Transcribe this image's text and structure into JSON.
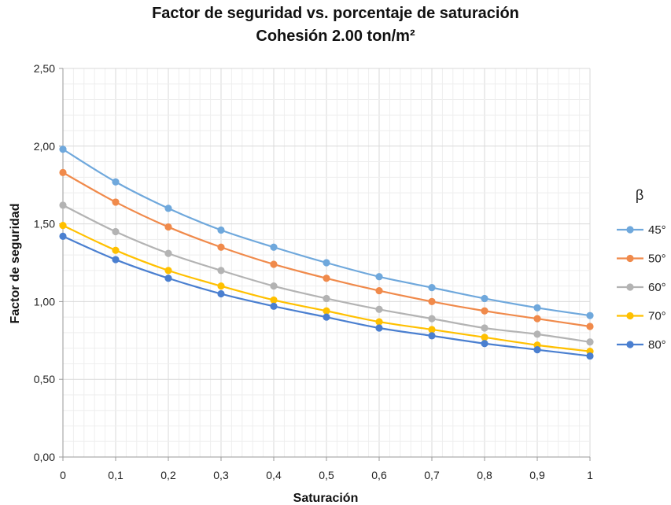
{
  "chart_data": {
    "type": "line",
    "title": "Factor de seguridad vs. porcentaje de saturación",
    "subtitle": "Cohesión 2.00 ton/m²",
    "xlabel": "Saturación",
    "ylabel": "Factor de seguridad",
    "x": [
      0,
      0.1,
      0.2,
      0.3,
      0.4,
      0.5,
      0.6,
      0.7,
      0.8,
      0.9,
      1
    ],
    "x_tick_labels": [
      "0",
      "0,1",
      "0,2",
      "0,3",
      "0,4",
      "0,5",
      "0,6",
      "0,7",
      "0,8",
      "0,9",
      "1"
    ],
    "xlim": [
      0,
      1
    ],
    "ylim": [
      0,
      2.5
    ],
    "y_ticks": [
      0,
      0.5,
      1.0,
      1.5,
      2.0,
      2.5
    ],
    "y_tick_labels": [
      "0,00",
      "0,50",
      "1,00",
      "1,50",
      "2,00",
      "2,50"
    ],
    "grid": true,
    "legend_title": "β",
    "legend_position": "right",
    "series": [
      {
        "name": "45°",
        "color": "#6fa8dc",
        "values": [
          1.98,
          1.77,
          1.6,
          1.46,
          1.35,
          1.25,
          1.16,
          1.09,
          1.02,
          0.96,
          0.91
        ]
      },
      {
        "name": "50°",
        "color": "#f08a4b",
        "values": [
          1.83,
          1.64,
          1.48,
          1.35,
          1.24,
          1.15,
          1.07,
          1.0,
          0.94,
          0.89,
          0.84
        ]
      },
      {
        "name": "60°",
        "color": "#b3b3b3",
        "values": [
          1.62,
          1.45,
          1.31,
          1.2,
          1.1,
          1.02,
          0.95,
          0.89,
          0.83,
          0.79,
          0.74
        ]
      },
      {
        "name": "70°",
        "color": "#ffc000",
        "values": [
          1.49,
          1.33,
          1.2,
          1.1,
          1.01,
          0.94,
          0.87,
          0.82,
          0.77,
          0.72,
          0.68
        ]
      },
      {
        "name": "80°",
        "color": "#4a7fd0",
        "values": [
          1.42,
          1.27,
          1.15,
          1.05,
          0.97,
          0.9,
          0.83,
          0.78,
          0.73,
          0.69,
          0.65
        ]
      }
    ]
  }
}
